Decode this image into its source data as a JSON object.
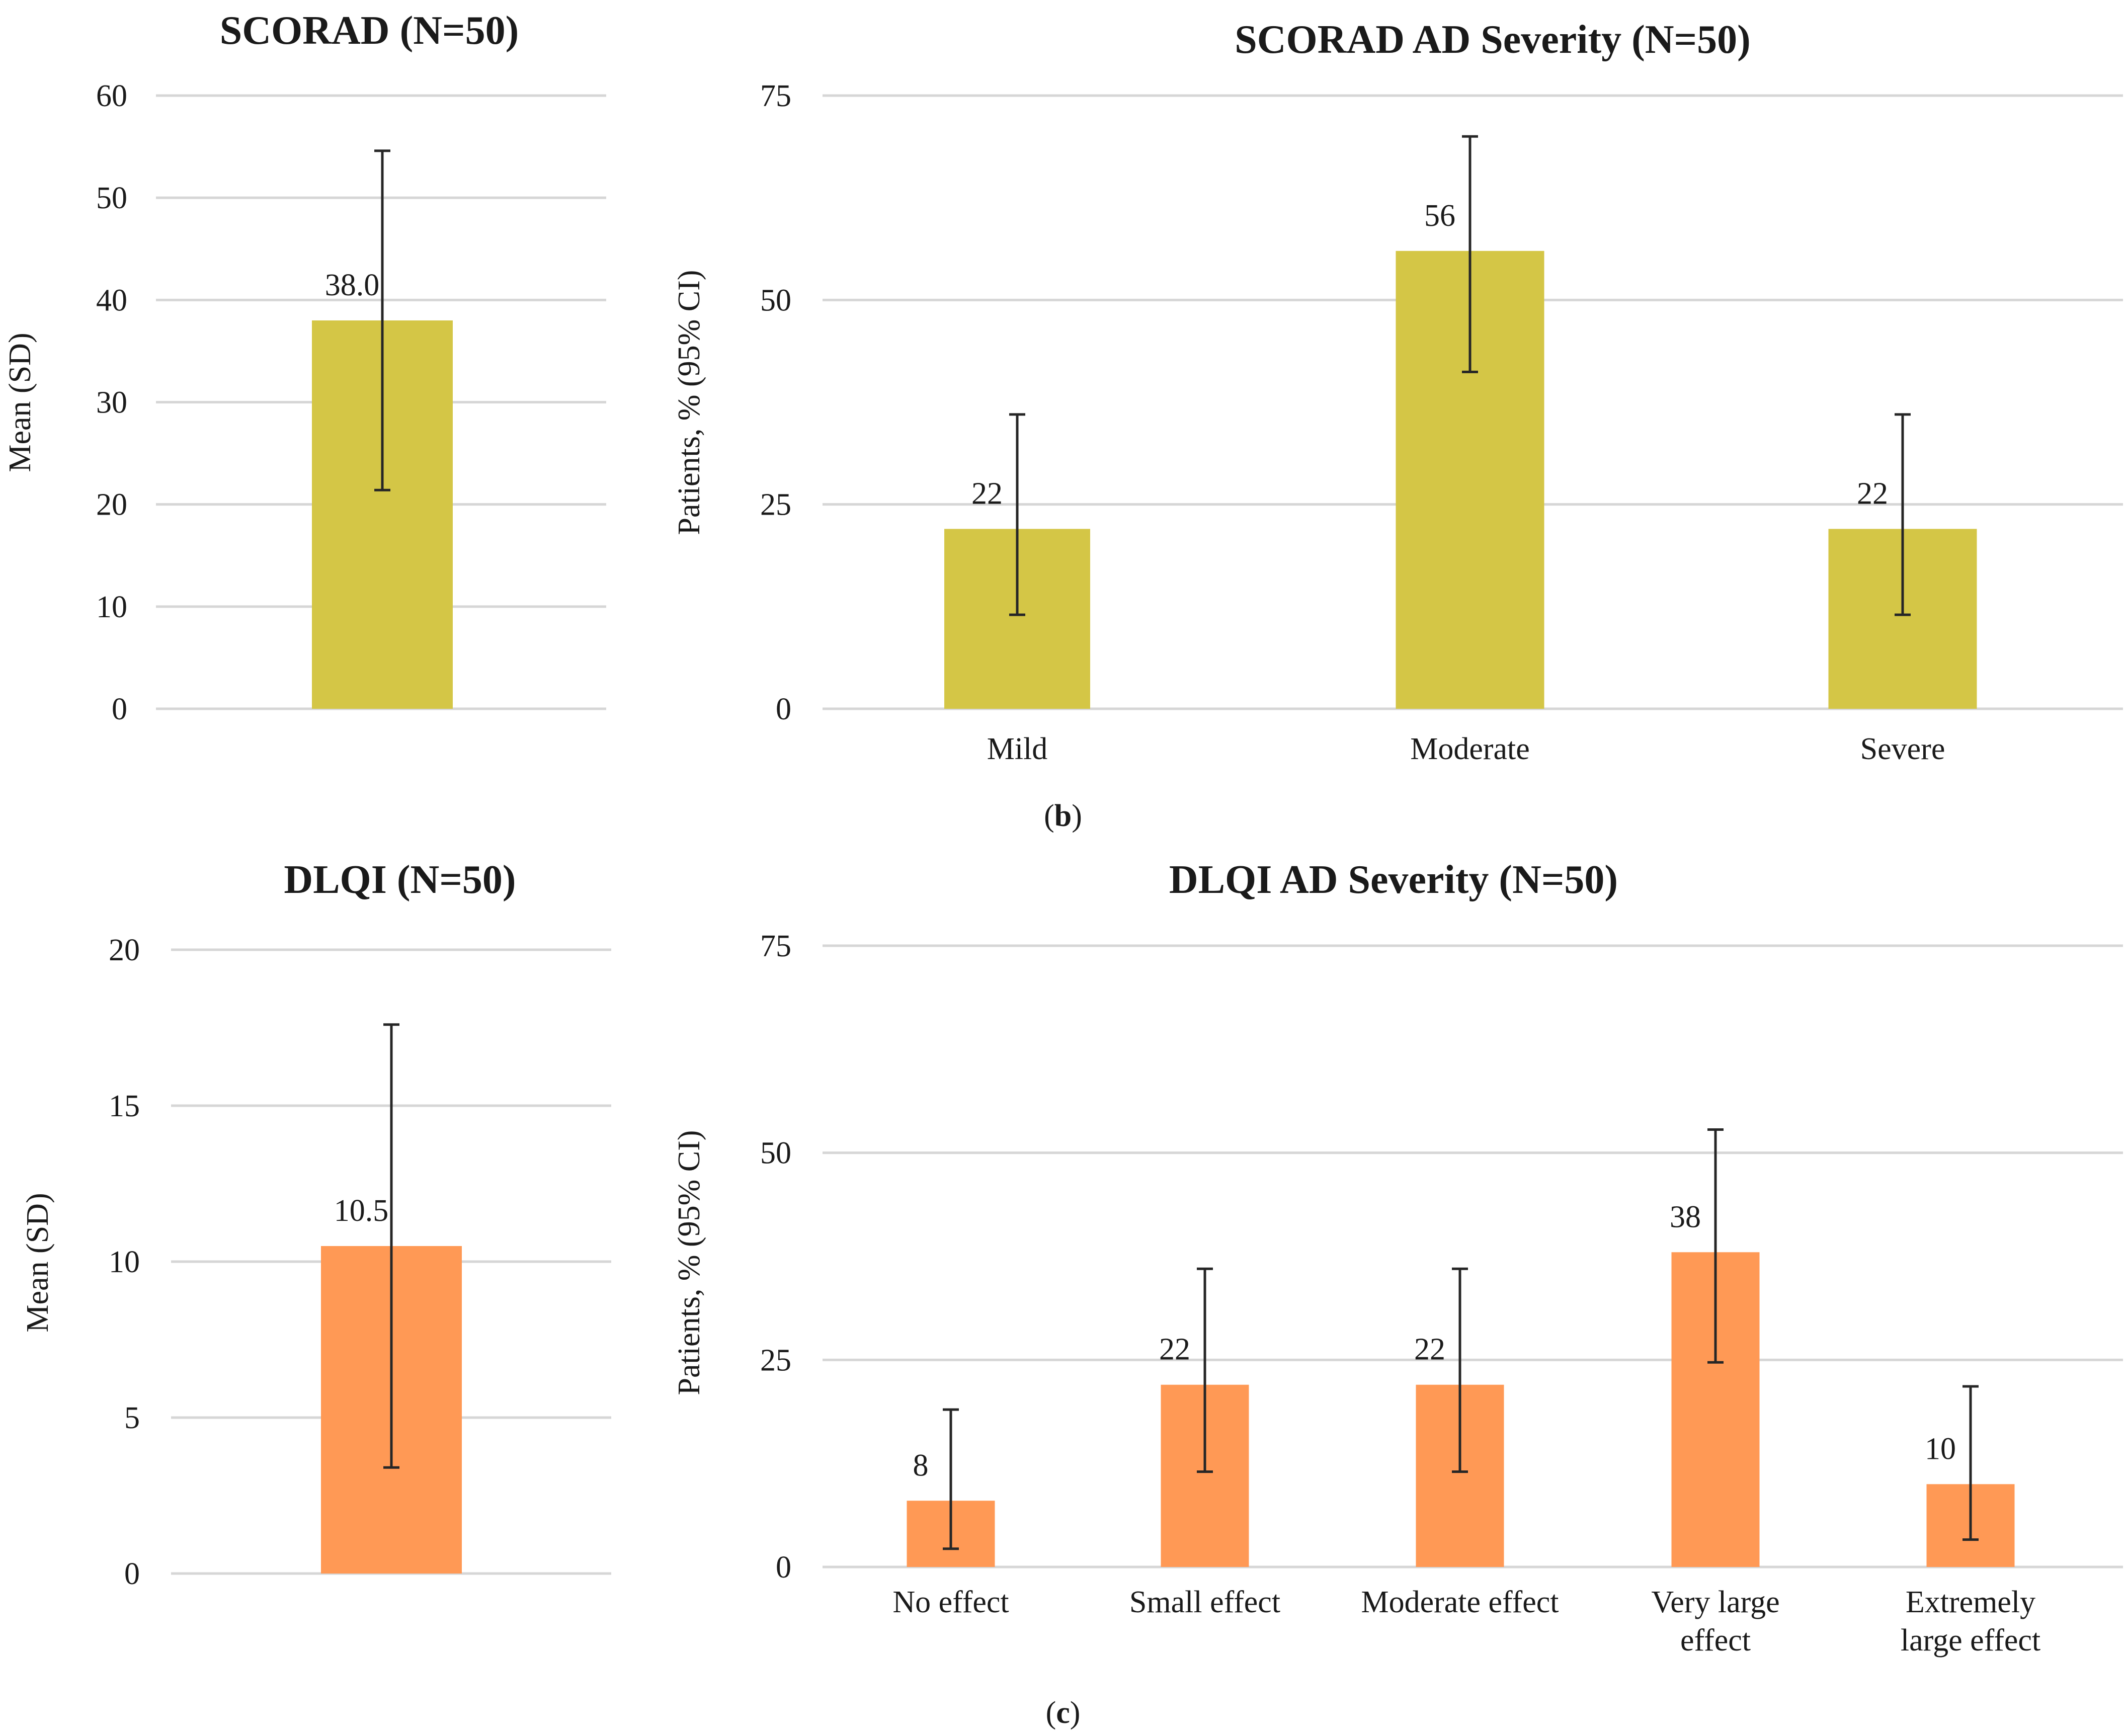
{
  "colors": {
    "scorad_bar": "#D4C646",
    "dlqi_bar": "#FF9955",
    "gridline": "#D6D6D6",
    "error_bar": "#262626",
    "text": "#1A1A1A"
  },
  "panel_labels": {
    "b": "b",
    "c": "c"
  },
  "chart_data": [
    {
      "id": "scorad_mean",
      "type": "bar",
      "title": "SCORAD (N=50)",
      "ylabel": "Mean (SD)",
      "xlabel": "",
      "categories": [
        ""
      ],
      "values": [
        38.0
      ],
      "value_labels": [
        "38.0"
      ],
      "error_low": [
        21.4
      ],
      "error_high": [
        54.6
      ],
      "ylim": [
        0,
        60
      ],
      "yticks": [
        0,
        10,
        20,
        30,
        40,
        50,
        60
      ],
      "ytick_labels": [
        "0",
        "10",
        "20",
        "30",
        "40",
        "50",
        "60"
      ],
      "grid": true
    },
    {
      "id": "scorad_severity",
      "type": "bar",
      "title": "SCORAD AD Severity (N=50)",
      "ylabel": "Patients, % (95% CI)",
      "xlabel": "",
      "categories": [
        "Mild",
        "Moderate",
        "Severe"
      ],
      "values": [
        22,
        56,
        22
      ],
      "value_labels": [
        "22",
        "56",
        "22"
      ],
      "error_low": [
        11.5,
        41.2,
        11.5
      ],
      "error_high": [
        36,
        70,
        36
      ],
      "ylim": [
        0,
        75
      ],
      "yticks": [
        0,
        25,
        50,
        75
      ],
      "ytick_labels": [
        "0",
        "25",
        "50",
        "75"
      ],
      "grid": true
    },
    {
      "id": "dlqi_mean",
      "type": "bar",
      "title": "DLQI (N=50)",
      "ylabel": "Mean (SD)",
      "xlabel": "",
      "categories": [
        ""
      ],
      "values": [
        10.5
      ],
      "value_labels": [
        "10.5"
      ],
      "error_low": [
        3.4
      ],
      "error_high": [
        17.6
      ],
      "ylim": [
        0,
        20
      ],
      "yticks": [
        0,
        5,
        10,
        15,
        20
      ],
      "ytick_labels": [
        "0",
        "5",
        "10",
        "15",
        "20"
      ],
      "grid": true
    },
    {
      "id": "dlqi_severity",
      "type": "bar",
      "title": "DLQI AD Severity (N=50)",
      "ylabel": "Patients, % (95% CI)",
      "xlabel": "",
      "categories": [
        "No effect",
        "Small effect",
        "Moderate effect",
        "Very large effect",
        "Extremely large effect"
      ],
      "category_lines": [
        [
          "No effect"
        ],
        [
          "Small effect"
        ],
        [
          "Moderate effect"
        ],
        [
          "Very large",
          "effect"
        ],
        [
          "Extremely",
          "large effect"
        ]
      ],
      "values": [
        8,
        22,
        22,
        38,
        10
      ],
      "value_labels": [
        "8",
        "22",
        "22",
        "38",
        "10"
      ],
      "error_low": [
        2.2,
        11.5,
        11.5,
        24.7,
        3.3
      ],
      "error_high": [
        19,
        36,
        36,
        52.8,
        21.8
      ],
      "ylim": [
        0,
        75
      ],
      "yticks": [
        0,
        25,
        50,
        75
      ],
      "ytick_labels": [
        "0",
        "25",
        "50",
        "75"
      ],
      "grid": true
    }
  ]
}
